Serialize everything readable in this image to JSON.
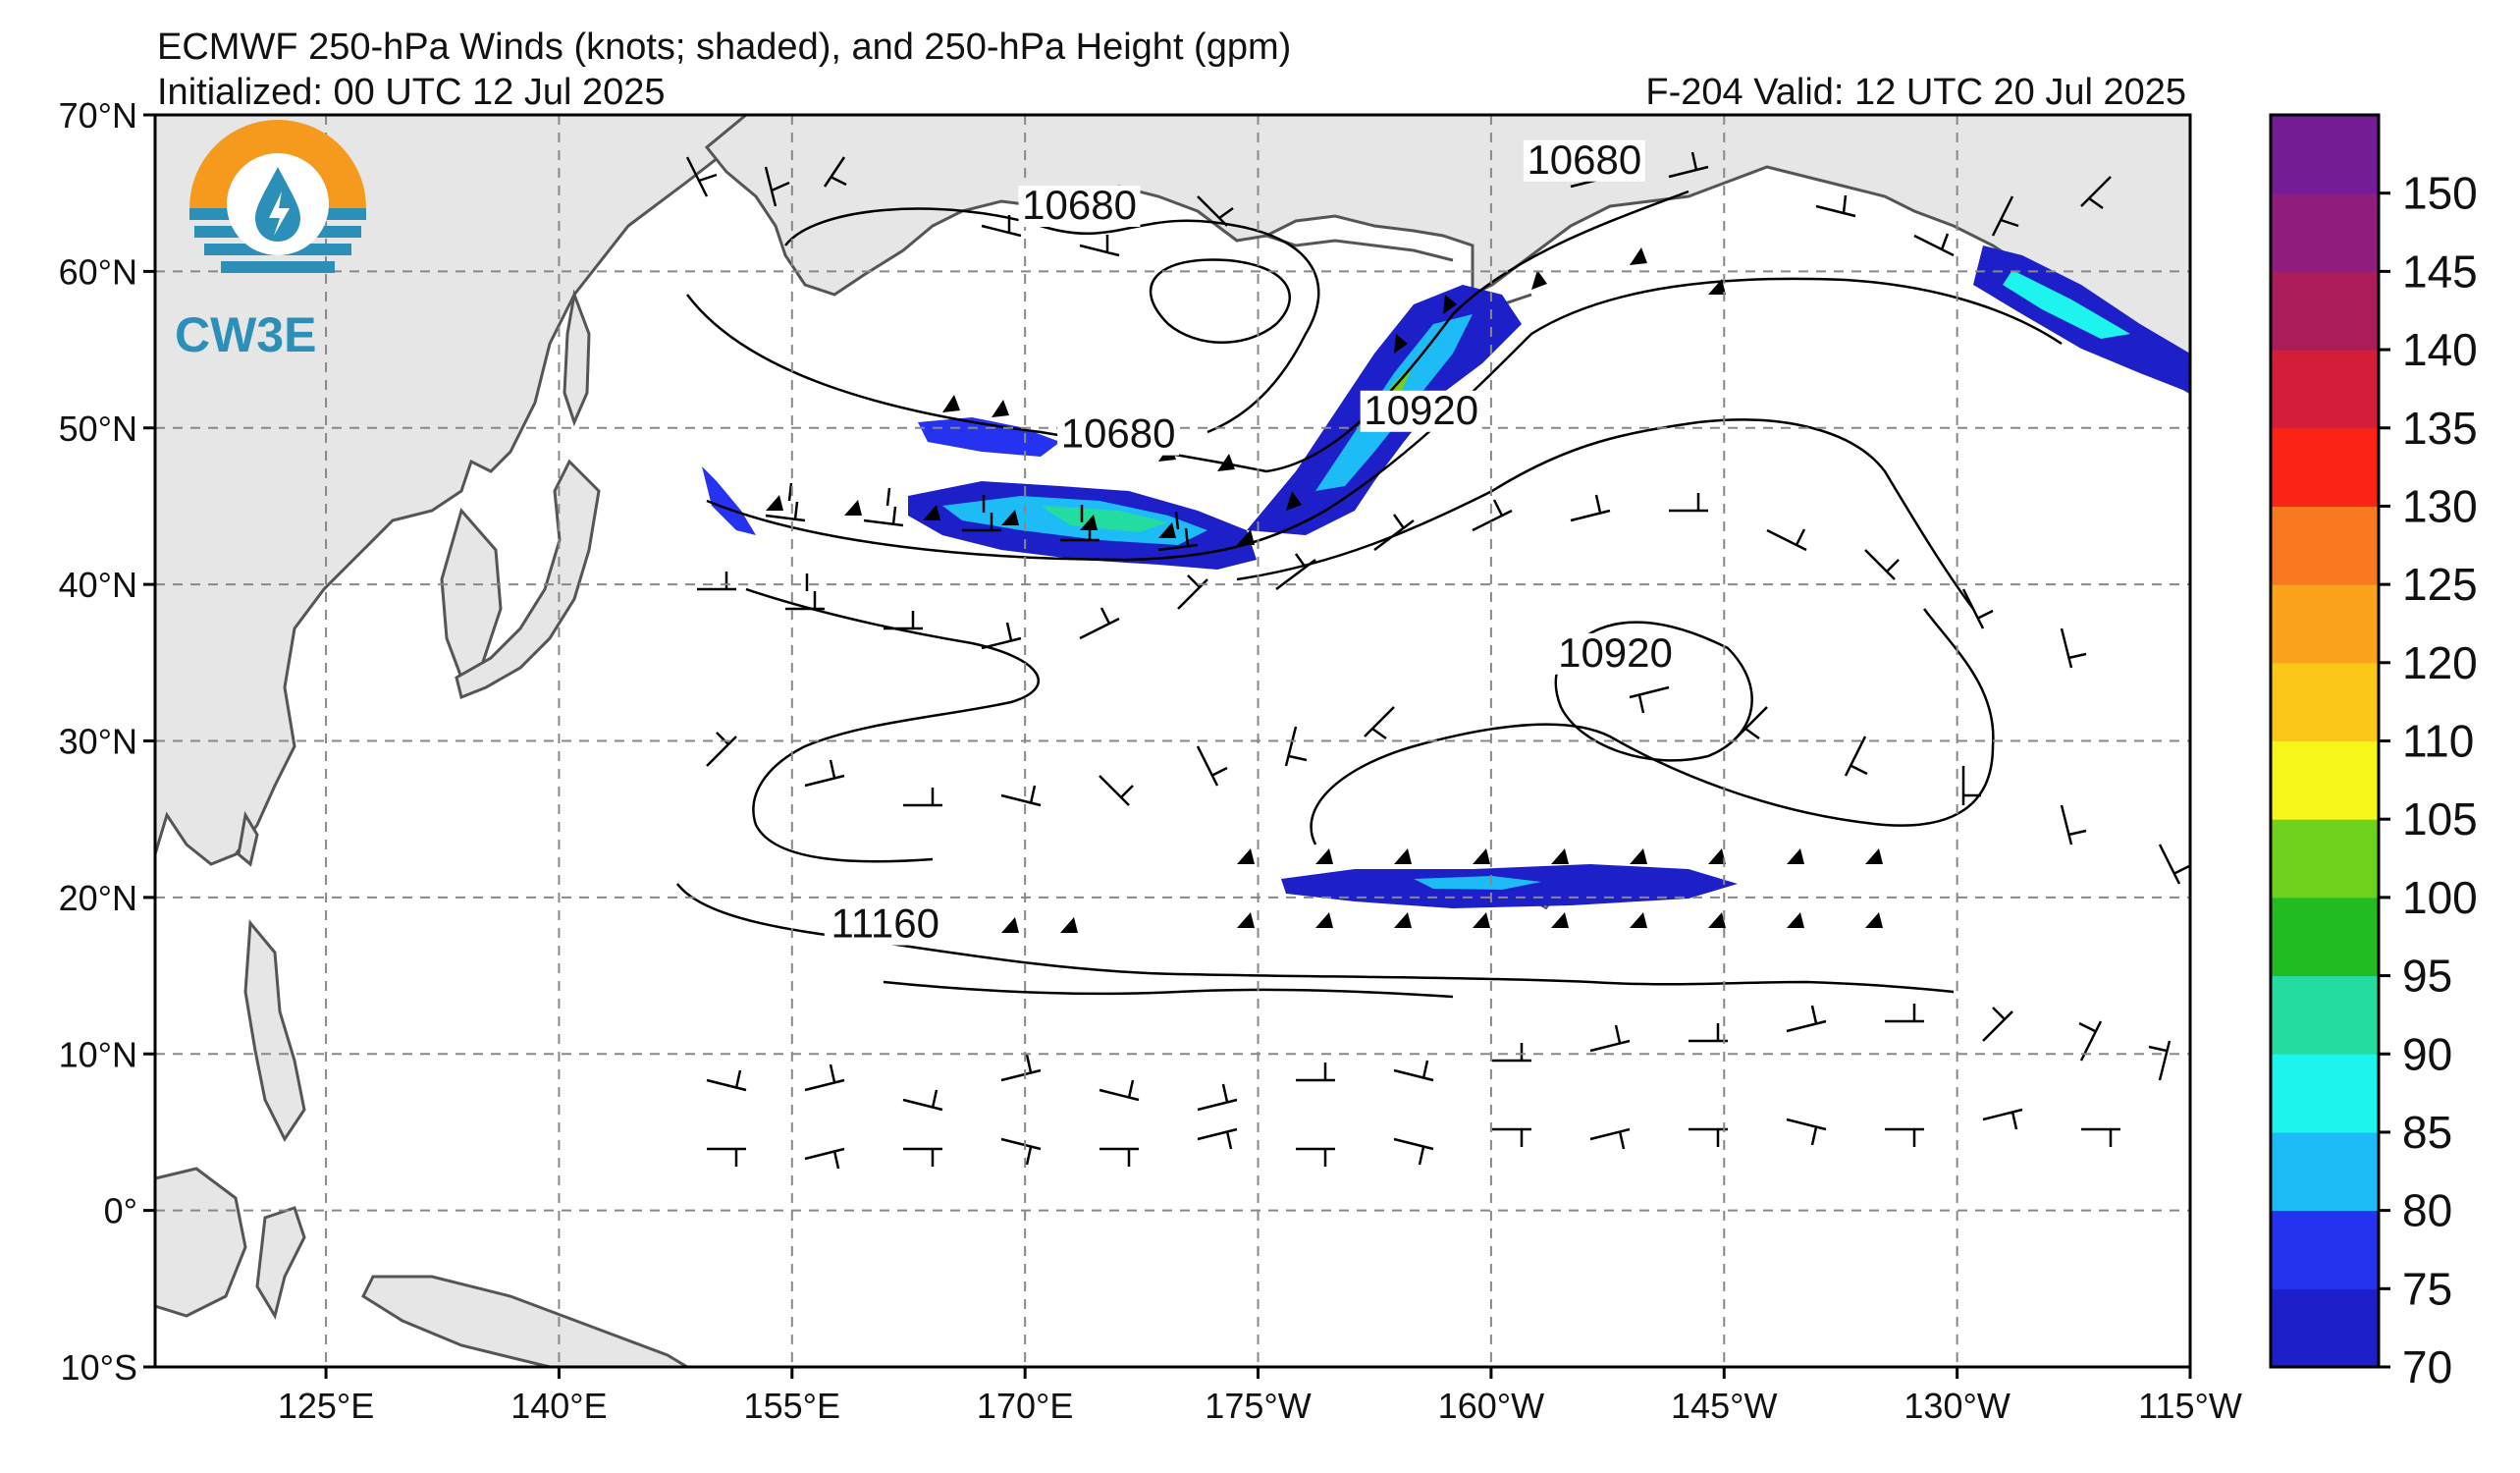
{
  "title": {
    "line1": "ECMWF 250-hPa Winds (knots; shaded), and 250-hPa Height (gpm)",
    "line2": "Initialized: 00 UTC 12 Jul 2025",
    "valid": "F-204  Valid: 12 UTC 20 Jul 2025"
  },
  "logo": {
    "text": "CW3E",
    "icon": "cw3e-water-drop-logo-icon"
  },
  "map": {
    "lon_range": [
      114,
      245
    ],
    "lat_range": [
      -10,
      70
    ],
    "land_color": "#e6e6e6",
    "coast_color": "#555555",
    "grid": "dashed",
    "lon_ticks": [
      {
        "lon": 125,
        "label": "125°E"
      },
      {
        "lon": 140,
        "label": "140°E"
      },
      {
        "lon": 155,
        "label": "155°E"
      },
      {
        "lon": 170,
        "label": "170°E"
      },
      {
        "lon": 185,
        "label": "175°W"
      },
      {
        "lon": 200,
        "label": "160°W"
      },
      {
        "lon": 215,
        "label": "145°W"
      },
      {
        "lon": 230,
        "label": "130°W"
      },
      {
        "lon": 245,
        "label": "115°W"
      }
    ],
    "lat_ticks": [
      {
        "lat": 70,
        "label": "70°N"
      },
      {
        "lat": 60,
        "label": "60°N"
      },
      {
        "lat": 50,
        "label": "50°N"
      },
      {
        "lat": 40,
        "label": "40°N"
      },
      {
        "lat": 30,
        "label": "30°N"
      },
      {
        "lat": 20,
        "label": "20°N"
      },
      {
        "lat": 10,
        "label": "10°N"
      },
      {
        "lat": 0,
        "label": "0°"
      },
      {
        "lat": -10,
        "label": "10°S"
      }
    ],
    "contour_labels": [
      {
        "text": "10680",
        "lon": 173.5,
        "lat": 63.6
      },
      {
        "text": "10680",
        "lon": 206,
        "lat": 66.5
      },
      {
        "text": "10680",
        "lon": 176,
        "lat": 49
      },
      {
        "text": "10920",
        "lon": 195.5,
        "lat": 50.5
      },
      {
        "text": "10920",
        "lon": 208,
        "lat": 35
      },
      {
        "text": "11160",
        "lon": 161,
        "lat": 17.7
      }
    ]
  },
  "colorbar": {
    "levels": [
      70,
      75,
      80,
      85,
      90,
      95,
      100,
      105,
      110,
      120,
      125,
      130,
      135,
      140,
      145,
      150
    ],
    "colors": [
      "#1d1fc8",
      "#2533f0",
      "#1ebcf6",
      "#1ef4ee",
      "#24dca0",
      "#22bb22",
      "#6ed21c",
      "#f6f61a",
      "#fbc817",
      "#fba41b",
      "#f87820",
      "#fb2316",
      "#d41d38",
      "#aa1c5a",
      "#8f1d7e",
      "#731c96"
    ],
    "labels": [
      "70",
      "75",
      "80",
      "85",
      "90",
      "95",
      "100",
      "105",
      "110",
      "120",
      "125",
      "130",
      "135",
      "140",
      "145",
      "150"
    ],
    "unit": "knots"
  }
}
